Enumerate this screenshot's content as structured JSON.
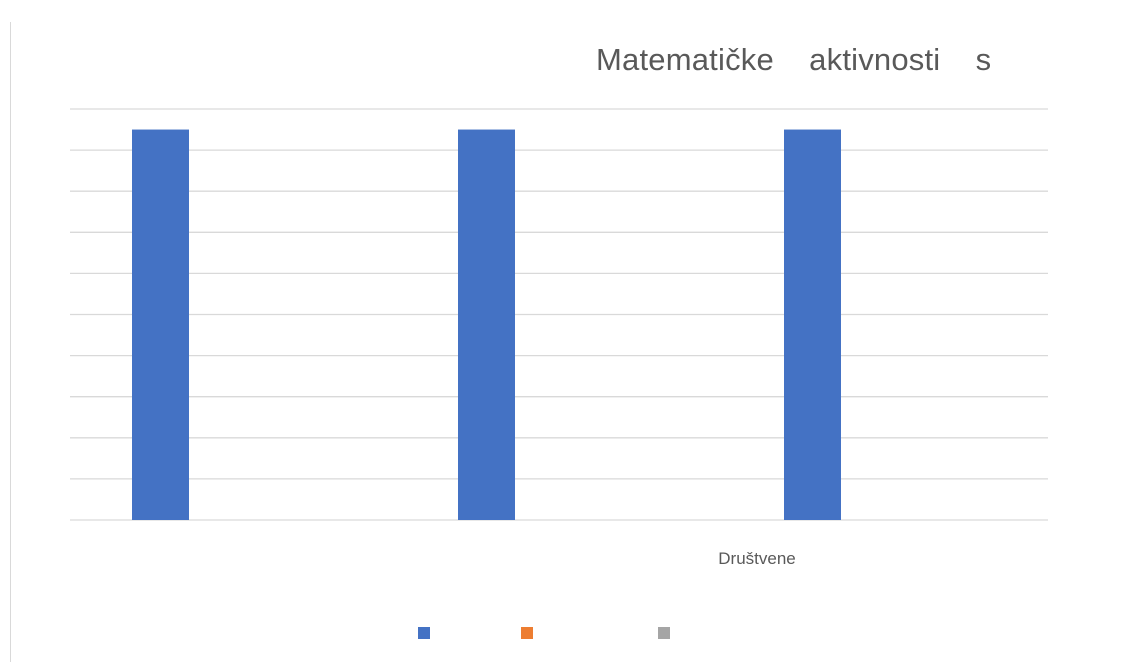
{
  "chart_data": {
    "type": "bar",
    "title": "Matematičke    aktivnosti    s",
    "xlabel": "",
    "ylabel": "",
    "categories": [
      "",
      "",
      ""
    ],
    "x_label_visible": "Društvene",
    "ylim": [
      0,
      10
    ],
    "grid": true,
    "legend_placement": "bottom",
    "series": [
      {
        "color": "#4472C4",
        "values": [
          9.5,
          9.5,
          9.5
        ]
      },
      {
        "color": "#ED7D31",
        "values": [
          0,
          0,
          0
        ]
      },
      {
        "color": "#A5A5A5",
        "values": [
          0,
          0,
          0
        ]
      }
    ]
  }
}
